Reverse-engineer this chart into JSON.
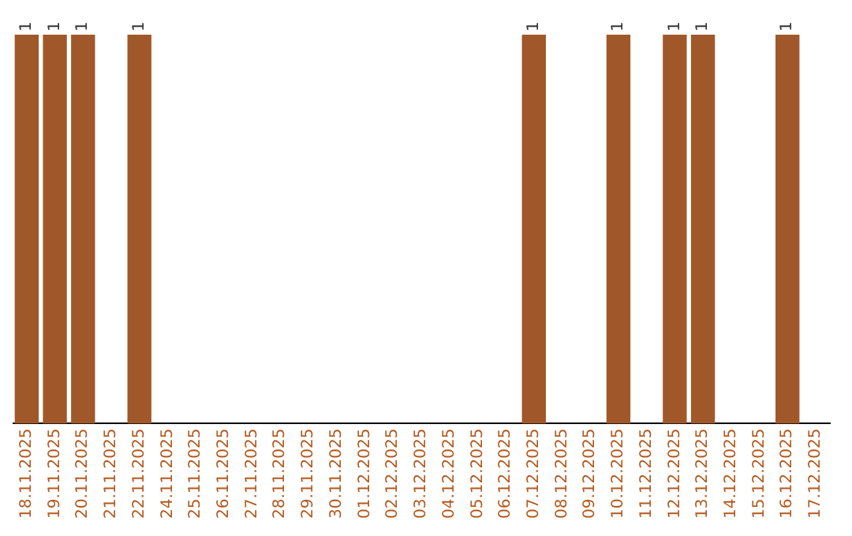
{
  "chart_data": {
    "type": "bar",
    "categories": [
      "18.11.2025",
      "19.11.2025",
      "20.11.2025",
      "21.11.2025",
      "22.11.2025",
      "24.11.2025",
      "25.11.2025",
      "26.11.2025",
      "27.11.2025",
      "28.11.2025",
      "29.11.2025",
      "30.11.2025",
      "01.12.2025",
      "02.12.2025",
      "03.12.2025",
      "04.12.2025",
      "05.12.2025",
      "06.12.2025",
      "07.12.2025",
      "08.12.2025",
      "09.12.2025",
      "10.12.2025",
      "11.12.2025",
      "12.12.2025",
      "13.12.2025",
      "14.12.2025",
      "15.12.2025",
      "16.12.2025",
      "17.12.2025"
    ],
    "values": [
      1,
      1,
      1,
      null,
      1,
      null,
      null,
      null,
      null,
      null,
      null,
      null,
      null,
      null,
      null,
      null,
      null,
      null,
      1,
      null,
      null,
      1,
      null,
      1,
      1,
      null,
      null,
      1,
      null
    ],
    "color": "#a0582a",
    "data_labels": true,
    "grid": false,
    "legend": false
  }
}
